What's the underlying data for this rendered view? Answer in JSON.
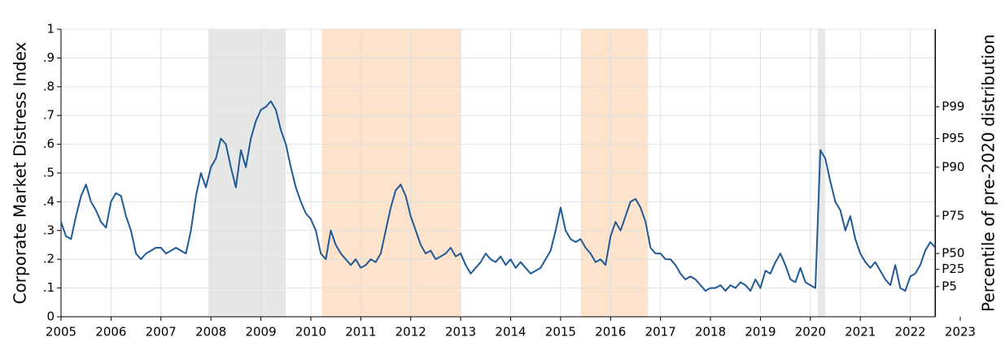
{
  "chart_data": {
    "type": "line",
    "y_label": "Corporate Market Distress Index",
    "y2_label": "Percentile of pre-2020 distribution",
    "xlim": [
      2005,
      2023
    ],
    "xticks": [
      2005,
      2006,
      2007,
      2008,
      2009,
      2010,
      2011,
      2012,
      2013,
      2014,
      2015,
      2016,
      2017,
      2018,
      2019,
      2020,
      2021,
      2022,
      2023
    ],
    "ylim": [
      0,
      1
    ],
    "yticks": [
      0,
      {
        "value": 0.1,
        "label": ".1"
      },
      {
        "value": 0.2,
        "label": ".2"
      },
      {
        "value": 0.3,
        "label": ".3"
      },
      {
        "value": 0.4,
        "label": ".4"
      },
      {
        "value": 0.5,
        "label": ".5"
      },
      {
        "value": 0.6,
        "label": ".6"
      },
      {
        "value": 0.7,
        "label": ".7"
      },
      {
        "value": 0.8,
        "label": ".8"
      },
      {
        "value": 0.9,
        "label": ".9"
      },
      1
    ],
    "y2lim": [
      0,
      1
    ],
    "y2ticks": [
      {
        "value": 0.105,
        "label": "P5"
      },
      {
        "value": 0.165,
        "label": "P25"
      },
      {
        "value": 0.22,
        "label": "P50"
      },
      {
        "value": 0.35,
        "label": "P75"
      },
      {
        "value": 0.52,
        "label": "P90"
      },
      {
        "value": 0.62,
        "label": "P95"
      },
      {
        "value": 0.73,
        "label": "P99"
      }
    ],
    "grid": true,
    "shaded_regions": [
      {
        "start": 2007.95,
        "end": 2009.5,
        "color": "#e6e8e8"
      },
      {
        "start": 2010.22,
        "end": 2013.0,
        "color": "#fde3cc"
      },
      {
        "start": 2015.4,
        "end": 2016.75,
        "color": "#fde3cc"
      },
      {
        "start": 2020.15,
        "end": 2020.3,
        "color": "#e6e8e8"
      }
    ],
    "x": [
      2005.0,
      2005.1,
      2005.2,
      2005.3,
      2005.4,
      2005.5,
      2005.6,
      2005.7,
      2005.8,
      2005.9,
      2006.0,
      2006.1,
      2006.2,
      2006.3,
      2006.4,
      2006.5,
      2006.6,
      2006.7,
      2006.8,
      2006.9,
      2007.0,
      2007.1,
      2007.2,
      2007.3,
      2007.4,
      2007.5,
      2007.6,
      2007.7,
      2007.8,
      2007.9,
      2008.0,
      2008.1,
      2008.2,
      2008.3,
      2008.4,
      2008.5,
      2008.6,
      2008.7,
      2008.8,
      2008.9,
      2009.0,
      2009.1,
      2009.2,
      2009.3,
      2009.4,
      2009.5,
      2009.6,
      2009.7,
      2009.8,
      2009.9,
      2010.0,
      2010.1,
      2010.2,
      2010.3,
      2010.4,
      2010.5,
      2010.6,
      2010.7,
      2010.8,
      2010.9,
      2011.0,
      2011.1,
      2011.2,
      2011.3,
      2011.4,
      2011.5,
      2011.6,
      2011.7,
      2011.8,
      2011.9,
      2012.0,
      2012.1,
      2012.2,
      2012.3,
      2012.4,
      2012.5,
      2012.6,
      2012.7,
      2012.8,
      2012.9,
      2013.0,
      2013.1,
      2013.2,
      2013.3,
      2013.4,
      2013.5,
      2013.6,
      2013.7,
      2013.8,
      2013.9,
      2014.0,
      2014.1,
      2014.2,
      2014.3,
      2014.4,
      2014.5,
      2014.6,
      2014.7,
      2014.8,
      2014.9,
      2015.0,
      2015.1,
      2015.2,
      2015.3,
      2015.4,
      2015.5,
      2015.6,
      2015.7,
      2015.8,
      2015.9,
      2016.0,
      2016.1,
      2016.2,
      2016.3,
      2016.4,
      2016.5,
      2016.6,
      2016.7,
      2016.8,
      2016.9,
      2017.0,
      2017.1,
      2017.2,
      2017.3,
      2017.4,
      2017.5,
      2017.6,
      2017.7,
      2017.8,
      2017.9,
      2018.0,
      2018.1,
      2018.2,
      2018.3,
      2018.4,
      2018.5,
      2018.6,
      2018.7,
      2018.8,
      2018.9,
      2019.0,
      2019.1,
      2019.2,
      2019.3,
      2019.4,
      2019.5,
      2019.6,
      2019.7,
      2019.8,
      2019.9,
      2020.0,
      2020.1,
      2020.2,
      2020.3,
      2020.4,
      2020.5,
      2020.6,
      2020.7,
      2020.8,
      2020.9,
      2021.0,
      2021.1,
      2021.2,
      2021.3,
      2021.4,
      2021.5,
      2021.6,
      2021.7,
      2021.8,
      2021.9,
      2022.0,
      2022.1,
      2022.2,
      2022.3,
      2022.4,
      2022.5
    ],
    "series": [
      {
        "name": "Corporate Market Distress Index",
        "color": "#1f5a96",
        "values": [
          0.33,
          0.28,
          0.27,
          0.35,
          0.42,
          0.46,
          0.4,
          0.37,
          0.33,
          0.31,
          0.4,
          0.43,
          0.42,
          0.35,
          0.3,
          0.22,
          0.2,
          0.22,
          0.23,
          0.24,
          0.24,
          0.22,
          0.23,
          0.24,
          0.23,
          0.22,
          0.3,
          0.42,
          0.5,
          0.45,
          0.52,
          0.55,
          0.62,
          0.6,
          0.52,
          0.45,
          0.58,
          0.52,
          0.62,
          0.68,
          0.72,
          0.73,
          0.75,
          0.72,
          0.65,
          0.6,
          0.52,
          0.45,
          0.4,
          0.36,
          0.34,
          0.3,
          0.22,
          0.2,
          0.3,
          0.25,
          0.22,
          0.2,
          0.18,
          0.2,
          0.17,
          0.18,
          0.2,
          0.19,
          0.22,
          0.3,
          0.38,
          0.44,
          0.46,
          0.42,
          0.35,
          0.3,
          0.25,
          0.22,
          0.23,
          0.2,
          0.21,
          0.22,
          0.24,
          0.21,
          0.22,
          0.18,
          0.15,
          0.17,
          0.19,
          0.22,
          0.2,
          0.19,
          0.21,
          0.18,
          0.2,
          0.17,
          0.19,
          0.17,
          0.15,
          0.16,
          0.17,
          0.2,
          0.23,
          0.3,
          0.38,
          0.3,
          0.27,
          0.26,
          0.27,
          0.24,
          0.22,
          0.19,
          0.2,
          0.18,
          0.28,
          0.33,
          0.3,
          0.35,
          0.4,
          0.41,
          0.38,
          0.33,
          0.24,
          0.22,
          0.22,
          0.2,
          0.2,
          0.18,
          0.15,
          0.13,
          0.14,
          0.13,
          0.11,
          0.09,
          0.1,
          0.1,
          0.11,
          0.09,
          0.11,
          0.1,
          0.12,
          0.11,
          0.09,
          0.13,
          0.1,
          0.16,
          0.15,
          0.19,
          0.22,
          0.18,
          0.13,
          0.12,
          0.17,
          0.12,
          0.11,
          0.1,
          0.58,
          0.55,
          0.47,
          0.4,
          0.37,
          0.3,
          0.35,
          0.27,
          0.22,
          0.19,
          0.17,
          0.19,
          0.16,
          0.13,
          0.11,
          0.18,
          0.1,
          0.09,
          0.14,
          0.15,
          0.18,
          0.23,
          0.26,
          0.24
        ]
      }
    ]
  }
}
